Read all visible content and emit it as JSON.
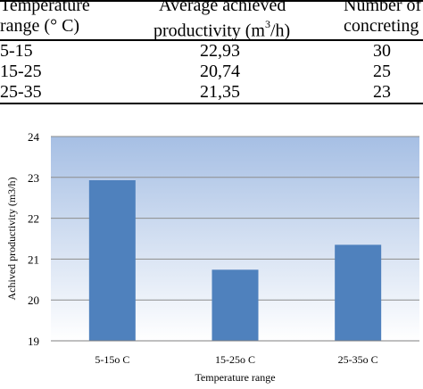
{
  "table": {
    "headers": [
      {
        "line1": "Temperature",
        "line2": "range (° C)"
      },
      {
        "line1": "Average achieved",
        "line2_pre": "productivity (m",
        "line2_sup": "3",
        "line2_post": "/h)"
      },
      {
        "line1": "Number of",
        "line2": "concreting"
      }
    ],
    "rows": [
      {
        "range": "5-15",
        "productivity": "22,93",
        "count": "30"
      },
      {
        "range": "15-25",
        "productivity": "20,74",
        "count": "25"
      },
      {
        "range": "25-35",
        "productivity": "21,35",
        "count": "23"
      }
    ]
  },
  "chart_data": {
    "type": "bar",
    "categories": [
      "5-15o C",
      "15-25o C",
      "25-35o C"
    ],
    "values": [
      22.93,
      20.74,
      21.35
    ],
    "title": "",
    "xlabel": "Temperature range",
    "ylabel": "Achived productivity (m3/h)",
    "ylim": [
      19,
      24
    ],
    "yticks": [
      19,
      20,
      21,
      22,
      23,
      24
    ],
    "grid": true,
    "bar_color": "#4f81bd",
    "plot_bg_top": "#a6bfe4",
    "plot_bg_bottom": "#ffffff"
  }
}
